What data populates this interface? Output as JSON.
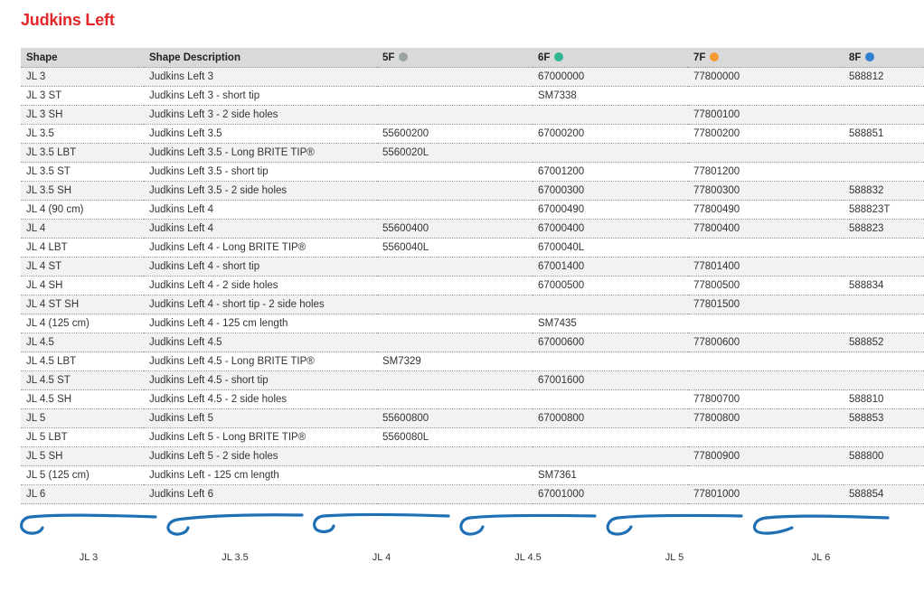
{
  "title": "Judkins Left",
  "headers": {
    "shape": "Shape",
    "description": "Shape Description",
    "f5": "5F",
    "f6": "6F",
    "f7": "7F",
    "f8": "8F"
  },
  "size_colors": {
    "f5": "#9aa3a3",
    "f6": "#2fb58f",
    "f7": "#f59a32",
    "f8": "#2f7fd0"
  },
  "rows": [
    [
      "JL 3",
      "Judkins Left 3",
      "",
      "67000000",
      "77800000",
      "588812"
    ],
    [
      "JL 3 ST",
      "Judkins Left 3 - short tip",
      "",
      "SM7338",
      "",
      ""
    ],
    [
      "JL 3 SH",
      "Judkins Left 3 - 2 side holes",
      "",
      "",
      "77800100",
      ""
    ],
    [
      "JL 3.5",
      "Judkins Left 3.5",
      "55600200",
      "67000200",
      "77800200",
      "588851"
    ],
    [
      "JL 3.5 LBT",
      "Judkins Left 3.5 - Long BRITE TIP®",
      "5560020L",
      "",
      "",
      ""
    ],
    [
      "JL 3.5 ST",
      "Judkins Left 3.5 - short tip",
      "",
      "67001200",
      "77801200",
      ""
    ],
    [
      "JL 3.5 SH",
      "Judkins Left 3.5 - 2 side holes",
      "",
      "67000300",
      "77800300",
      "588832"
    ],
    [
      "JL 4 (90 cm)",
      "Judkins Left 4",
      "",
      "67000490",
      "77800490",
      "588823T"
    ],
    [
      "JL 4",
      "Judkins Left 4",
      "55600400",
      "67000400",
      "77800400",
      "588823"
    ],
    [
      "JL 4 LBT",
      "Judkins Left 4 - Long BRITE TIP®",
      "5560040L",
      "6700040L",
      "",
      ""
    ],
    [
      "JL 4 ST",
      "Judkins Left 4 - short tip",
      "",
      "67001400",
      "77801400",
      ""
    ],
    [
      "JL 4 SH",
      "Judkins Left 4 - 2 side holes",
      "",
      "67000500",
      "77800500",
      "588834"
    ],
    [
      "JL 4 ST SH",
      "Judkins Left 4 - short tip - 2 side holes",
      "",
      "",
      "77801500",
      ""
    ],
    [
      "JL 4 (125 cm)",
      "Judkins Left 4 - 125 cm length",
      "",
      "SM7435",
      "",
      ""
    ],
    [
      "JL 4.5",
      "Judkins Left 4.5",
      "",
      "67000600",
      "77800600",
      "588852"
    ],
    [
      "JL 4.5 LBT",
      "Judkins Left 4.5 - Long BRITE TIP®",
      "SM7329",
      "",
      "",
      ""
    ],
    [
      "JL 4.5 ST",
      "Judkins Left 4.5 - short tip",
      "",
      "67001600",
      "",
      ""
    ],
    [
      "JL 4.5 SH",
      "Judkins Left 4.5 - 2 side holes",
      "",
      "",
      "77800700",
      "588810"
    ],
    [
      "JL 5",
      "Judkins Left 5",
      "55600800",
      "67000800",
      "77800800",
      "588853"
    ],
    [
      "JL 5 LBT",
      "Judkins Left 5 - Long BRITE TIP®",
      "5560080L",
      "",
      "",
      ""
    ],
    [
      "JL 5 SH",
      "Judkins Left 5 - 2 side holes",
      "",
      "",
      "77800900",
      "588800"
    ],
    [
      "JL 5 (125 cm)",
      "Judkins Left - 125 cm length",
      "",
      "SM7361",
      "",
      ""
    ],
    [
      "JL 6",
      "Judkins Left 6",
      "",
      "67001000",
      "77801000",
      "588854"
    ]
  ],
  "curves": {
    "color": "#1f6fb5",
    "labels": [
      "JL 3",
      "JL 3.5",
      "JL 4",
      "JL 4.5",
      "JL 5",
      "JL 6"
    ]
  }
}
